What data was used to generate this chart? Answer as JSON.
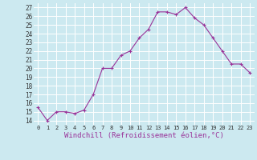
{
  "x": [
    0,
    1,
    2,
    3,
    4,
    5,
    6,
    7,
    8,
    9,
    10,
    11,
    12,
    13,
    14,
    15,
    16,
    17,
    18,
    19,
    20,
    21,
    22,
    23
  ],
  "y": [
    15.5,
    14.0,
    15.0,
    15.0,
    14.8,
    15.2,
    17.0,
    20.0,
    20.0,
    21.5,
    22.0,
    23.5,
    24.5,
    26.5,
    26.5,
    26.2,
    27.0,
    25.8,
    25.0,
    23.5,
    22.0,
    20.5,
    20.5,
    19.5
  ],
  "line_color": "#993399",
  "marker": "+",
  "marker_size": 3,
  "marker_lw": 0.8,
  "bg_color": "#cce9f0",
  "grid_color": "#ffffff",
  "xlabel": "Windchill (Refroidissement éolien,°C)",
  "yticks": [
    14,
    15,
    16,
    17,
    18,
    19,
    20,
    21,
    22,
    23,
    24,
    25,
    26,
    27
  ],
  "xticks": [
    0,
    1,
    2,
    3,
    4,
    5,
    6,
    7,
    8,
    9,
    10,
    11,
    12,
    13,
    14,
    15,
    16,
    17,
    18,
    19,
    20,
    21,
    22,
    23
  ],
  "ylim": [
    13.5,
    27.5
  ],
  "xlim": [
    -0.5,
    23.5
  ],
  "xlabel_fontsize": 6.5,
  "ytick_fontsize": 5.5,
  "xtick_fontsize": 5.0,
  "line_width": 0.8
}
